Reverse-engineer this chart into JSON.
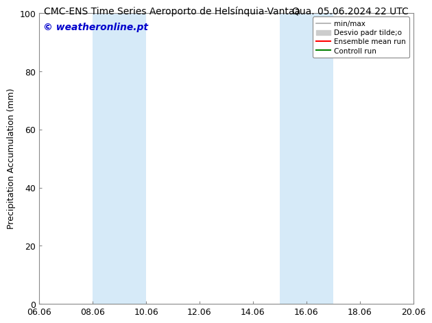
{
  "title_left": "CMC-ENS Time Series Aeroporto de Helsínquia-Vantaa",
  "title_right": "Qua. 05.06.2024 22 UTC",
  "ylabel": "Precipitation Accumulation (mm)",
  "ylim": [
    0,
    100
  ],
  "xtick_positions": [
    6.06,
    8.06,
    10.06,
    12.06,
    14.06,
    16.06,
    18.06,
    20.06
  ],
  "xtick_labels": [
    "06.06",
    "08.06",
    "10.06",
    "12.06",
    "14.06",
    "16.06",
    "18.06",
    "20.06"
  ],
  "ytick_positions": [
    0,
    20,
    40,
    60,
    80,
    100
  ],
  "ytick_labels": [
    "0",
    "20",
    "40",
    "60",
    "80",
    "100"
  ],
  "watermark": "© weatheronline.pt",
  "watermark_color": "#0000cc",
  "bg_color": "#ffffff",
  "plot_bg_color": "#ffffff",
  "shaded_regions": [
    {
      "x_start": 8.06,
      "x_end": 10.06,
      "color": "#d6eaf8"
    },
    {
      "x_start": 15.06,
      "x_end": 17.06,
      "color": "#d6eaf8"
    }
  ],
  "legend_entries": [
    {
      "label": "min/max",
      "color": "#aaaaaa",
      "lw": 1.2,
      "patch": false
    },
    {
      "label": "Desvio padr tilde;o",
      "color": "#cccccc",
      "lw": 8,
      "patch": true
    },
    {
      "label": "Ensemble mean run",
      "color": "#ff0000",
      "lw": 1.5,
      "patch": false
    },
    {
      "label": "Controll run",
      "color": "#008000",
      "lw": 1.5,
      "patch": false
    }
  ],
  "title_fontsize": 10,
  "tick_fontsize": 9,
  "ylabel_fontsize": 9,
  "watermark_fontsize": 10
}
